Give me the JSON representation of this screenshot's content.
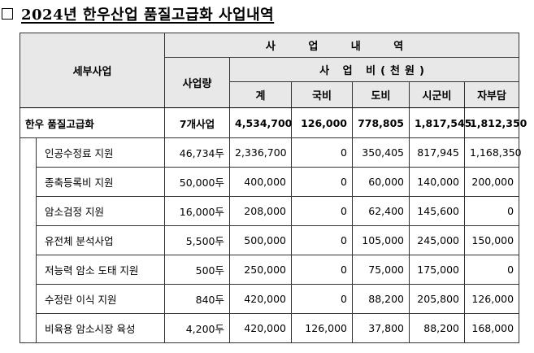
{
  "title": "2024년 한우산업 품질고급화 사업내역",
  "header": {
    "col_project": "세부사업",
    "group_title": "사 업 내 역",
    "col_scale": "사업량",
    "cost_group": "사 업 비(천원)",
    "cost_cols": [
      "계",
      "국비",
      "도비",
      "시군비",
      "자부담"
    ]
  },
  "total": {
    "name": "한우 품질고급화",
    "scale": "7개사업",
    "values": [
      "4,534,700",
      "126,000",
      "778,805",
      "1,817,545",
      "1,812,350"
    ]
  },
  "rows": [
    {
      "name": "인공수정료 지원",
      "scale": "46,734두",
      "values": [
        "2,336,700",
        "0",
        "350,405",
        "817,945",
        "1,168,350"
      ]
    },
    {
      "name": "종축등록비 지원",
      "scale": "50,000두",
      "values": [
        "400,000",
        "0",
        "60,000",
        "140,000",
        "200,000"
      ]
    },
    {
      "name": "암소검정 지원",
      "scale": "16,000두",
      "values": [
        "208,000",
        "0",
        "62,400",
        "145,600",
        "0"
      ]
    },
    {
      "name": "유전체 분석사업",
      "scale": "5,500두",
      "values": [
        "500,000",
        "0",
        "105,000",
        "245,000",
        "150,000"
      ]
    },
    {
      "name": "저능력 암소 도태 지원",
      "scale": "500두",
      "values": [
        "250,000",
        "0",
        "75,000",
        "175,000",
        "0"
      ]
    },
    {
      "name": "수정란 이식 지원",
      "scale": "840두",
      "values": [
        "420,000",
        "0",
        "88,200",
        "205,800",
        "126,000"
      ]
    },
    {
      "name": "비육용 암소시장 육성",
      "scale": "4,200두",
      "values": [
        "420,000",
        "126,000",
        "37,800",
        "88,200",
        "168,000"
      ]
    }
  ]
}
